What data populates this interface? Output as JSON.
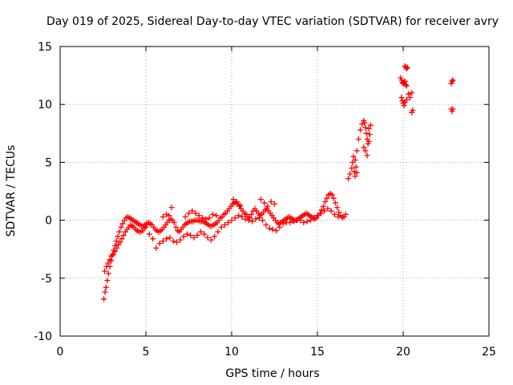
{
  "chart_data": {
    "type": "scatter",
    "title": "Day 019 of 2025, Sidereal Day-to-day VTEC variation (SDTVAR) for receiver avry",
    "xlabel": "GPS time / hours",
    "ylabel": "SDTVAR / TECUs",
    "xlim": [
      0,
      25
    ],
    "ylim": [
      -10,
      15
    ],
    "xticks": [
      0,
      5,
      10,
      15,
      20,
      25
    ],
    "yticks": [
      -10,
      -5,
      0,
      5,
      10,
      15
    ],
    "xtick_labels": [
      "0",
      "5",
      "10",
      "15",
      "20",
      "25"
    ],
    "ytick_labels": [
      "-10",
      "-5",
      "0",
      "5",
      "10",
      "15"
    ],
    "grid": true,
    "marker": "+",
    "color": "#ff0000",
    "series": [
      {
        "name": "main-trace",
        "x": [
          2.55,
          2.62,
          2.68,
          2.75,
          2.82,
          2.9,
          2.98,
          3.05,
          3.12,
          3.2,
          3.28,
          3.36,
          3.45,
          3.55,
          3.65,
          3.75,
          3.85,
          3.95,
          4.05,
          4.15,
          4.25,
          4.35,
          4.45,
          4.55,
          4.65,
          4.75,
          4.85,
          4.95,
          5.05,
          5.15,
          5.25,
          5.35,
          5.45,
          5.55,
          5.65,
          5.75,
          5.85,
          5.95,
          6.05,
          6.15,
          6.25,
          6.35,
          6.45,
          6.55,
          6.65,
          6.75,
          6.85,
          6.95,
          7.05,
          7.15,
          7.25,
          7.35,
          7.45,
          7.55,
          7.65,
          7.75,
          7.85,
          7.95,
          8.05,
          8.15,
          8.25,
          8.35,
          8.45,
          8.55,
          8.65,
          8.75,
          8.85,
          8.95,
          9.05,
          9.15,
          9.25,
          9.35,
          9.45,
          9.55,
          9.65,
          9.75,
          9.85,
          9.95,
          10.05,
          10.15,
          10.25,
          10.35,
          10.45,
          10.55,
          10.65,
          10.75,
          10.85,
          10.95,
          11.05,
          11.15,
          11.25,
          11.35,
          11.45,
          11.55,
          11.65,
          11.75,
          11.85,
          11.95,
          12.05,
          12.15,
          12.25,
          12.35,
          12.45,
          12.55,
          12.65,
          12.75,
          12.85,
          12.95,
          13.05,
          13.15,
          13.25,
          13.35,
          13.45,
          13.55,
          13.65,
          13.75,
          13.85,
          13.95,
          14.05,
          14.15,
          14.25,
          14.35,
          14.45,
          14.55,
          14.65,
          14.75,
          14.85,
          14.95,
          15.05,
          15.15,
          15.25,
          15.35,
          15.45,
          15.55,
          15.65,
          15.75,
          15.85,
          15.95,
          16.05,
          16.15,
          16.25,
          16.35,
          16.45,
          16.55,
          16.65
        ],
        "y": [
          -6.8,
          -6.2,
          -5.8,
          -5.2,
          -4.6,
          -4.0,
          -3.5,
          -3.0,
          -2.6,
          -2.2,
          -1.8,
          -1.4,
          -1.0,
          -0.6,
          -0.3,
          0.0,
          0.2,
          0.3,
          0.2,
          0.1,
          0.0,
          -0.1,
          -0.2,
          -0.3,
          -0.4,
          -0.5,
          -0.5,
          -0.4,
          -0.3,
          -0.2,
          -0.3,
          -0.4,
          -0.6,
          -0.8,
          -0.9,
          -1.0,
          -0.9,
          -0.8,
          -0.6,
          -0.4,
          -0.2,
          0.0,
          0.1,
          0.0,
          -0.2,
          -0.6,
          -0.9,
          -1.0,
          -0.8,
          -0.6,
          -0.4,
          -0.3,
          -0.2,
          -0.1,
          -0.1,
          -0.1,
          0.0,
          0.0,
          0.0,
          -0.1,
          -0.1,
          -0.1,
          -0.2,
          -0.3,
          -0.4,
          -0.5,
          -0.5,
          -0.4,
          -0.3,
          -0.2,
          0.0,
          0.2,
          0.3,
          0.5,
          0.6,
          0.8,
          1.0,
          1.2,
          1.4,
          1.5,
          1.5,
          1.4,
          1.2,
          1.0,
          0.8,
          0.6,
          0.5,
          0.3,
          0.2,
          0.5,
          0.8,
          1.0,
          0.8,
          0.6,
          0.4,
          0.5,
          0.7,
          0.9,
          1.0,
          0.8,
          0.6,
          0.4,
          0.2,
          0.0,
          -0.2,
          -0.3,
          -0.2,
          -0.1,
          0.0,
          0.1,
          0.2,
          0.3,
          0.2,
          0.1,
          0.0,
          0.0,
          0.1,
          0.2,
          0.3,
          0.4,
          0.5,
          0.6,
          0.5,
          0.4,
          0.3,
          0.2,
          0.1,
          0.2,
          0.4,
          0.6,
          0.9,
          1.2,
          1.6,
          1.9,
          2.2,
          2.3,
          2.2,
          1.9,
          1.5,
          1.1,
          0.7,
          0.4,
          0.2,
          0.3,
          0.5
        ]
      },
      {
        "name": "lower-trace",
        "x": [
          2.6,
          2.7,
          2.8,
          2.9,
          3.0,
          3.1,
          3.2,
          3.3,
          3.4,
          3.5,
          3.6,
          3.7,
          3.8,
          3.9,
          4.0,
          4.1,
          4.2,
          4.3,
          4.4,
          4.5,
          4.6,
          4.7,
          4.8,
          4.9,
          5.0,
          5.2,
          5.4,
          5.6,
          5.8,
          6.0,
          6.2,
          6.4,
          6.6,
          6.8,
          7.0,
          7.2,
          7.4,
          7.6,
          7.8,
          8.0,
          8.2,
          8.4,
          8.6,
          8.8,
          9.0,
          9.2,
          9.4,
          9.6,
          9.8,
          10.0,
          10.2,
          10.4,
          10.6,
          10.8,
          11.0,
          11.2,
          11.4,
          11.6,
          11.8,
          12.0,
          12.2,
          12.4,
          12.6,
          12.8,
          13.0,
          13.2,
          13.4,
          13.6,
          13.8,
          14.0,
          14.2,
          14.4,
          14.6,
          14.8,
          15.0,
          15.2,
          15.4,
          15.6,
          15.8,
          16.0,
          16.2
        ],
        "y": [
          -4.4,
          -4.0,
          -3.7,
          -3.4,
          -3.1,
          -2.9,
          -2.7,
          -2.4,
          -2.1,
          -1.9,
          -1.6,
          -1.3,
          -1.0,
          -0.8,
          -0.6,
          -0.4,
          -0.5,
          -0.6,
          -0.8,
          -0.9,
          -1.0,
          -1.0,
          -0.9,
          -0.7,
          -0.6,
          -1.2,
          -1.6,
          -2.4,
          -2.0,
          -1.8,
          -1.6,
          -1.5,
          -1.8,
          -1.9,
          -1.7,
          -1.4,
          -1.2,
          -1.3,
          -1.5,
          -1.3,
          -1.0,
          -1.2,
          -1.5,
          -1.7,
          -1.4,
          -1.0,
          -0.6,
          -0.4,
          -0.2,
          0.0,
          0.2,
          0.4,
          0.3,
          0.1,
          0.0,
          -0.1,
          0.1,
          0.2,
          0.0,
          -0.4,
          -0.7,
          -0.8,
          -0.9,
          -0.6,
          -0.3,
          -0.2,
          -0.2,
          -0.1,
          0.0,
          0.0,
          -0.2,
          -0.1,
          0.0,
          0.2,
          0.4,
          0.6,
          0.8,
          1.0,
          0.8,
          0.5,
          0.3
        ]
      },
      {
        "name": "upper-branch",
        "x": [
          6.0,
          6.2,
          6.35,
          6.5,
          7.3,
          7.5,
          7.7,
          7.9,
          8.1,
          8.3,
          8.5,
          8.7,
          8.9,
          9.1,
          10.1,
          10.3,
          10.5,
          11.7,
          11.9,
          12.1,
          12.3,
          12.5
        ],
        "y": [
          0.3,
          0.5,
          0.4,
          1.1,
          0.3,
          0.6,
          0.8,
          0.6,
          0.4,
          0.2,
          0.1,
          0.2,
          0.5,
          0.4,
          1.8,
          1.6,
          1.3,
          1.8,
          1.5,
          1.2,
          1.6,
          1.4
        ]
      },
      {
        "name": "late-rise",
        "x": [
          16.8,
          16.9,
          17.0,
          17.05,
          17.1,
          17.15,
          17.2,
          17.3,
          17.4,
          17.5,
          17.6,
          17.7,
          17.75,
          17.8,
          17.85,
          17.9,
          17.95,
          18.0,
          18.05,
          18.1,
          17.2,
          17.25,
          17.3,
          17.7,
          17.8,
          17.9,
          18.0
        ],
        "y": [
          3.6,
          4.0,
          4.5,
          5.0,
          5.5,
          4.2,
          3.8,
          6.0,
          7.0,
          7.8,
          8.3,
          8.6,
          8.4,
          8.0,
          7.5,
          7.0,
          6.6,
          6.8,
          7.4,
          8.2,
          5.2,
          4.6,
          4.1,
          6.3,
          6.0,
          5.6,
          7.9
        ]
      },
      {
        "name": "high-clusters",
        "x": [
          19.85,
          19.9,
          19.95,
          20.0,
          20.05,
          20.1,
          20.15,
          20.2,
          19.9,
          19.95,
          20.0,
          20.05,
          20.1,
          20.2,
          20.3,
          20.4,
          20.5,
          20.1,
          20.15,
          20.2,
          20.25,
          20.5,
          20.55,
          22.8,
          22.85,
          22.9,
          22.8,
          22.85,
          22.9
        ],
        "y": [
          12.3,
          12.1,
          11.9,
          11.8,
          11.9,
          12.0,
          11.7,
          11.6,
          10.6,
          10.3,
          10.1,
          9.9,
          10.2,
          10.4,
          10.9,
          10.6,
          11.0,
          13.3,
          13.2,
          13.1,
          13.2,
          9.3,
          9.5,
          11.8,
          12.0,
          12.1,
          9.6,
          9.4,
          9.6
        ]
      }
    ]
  }
}
